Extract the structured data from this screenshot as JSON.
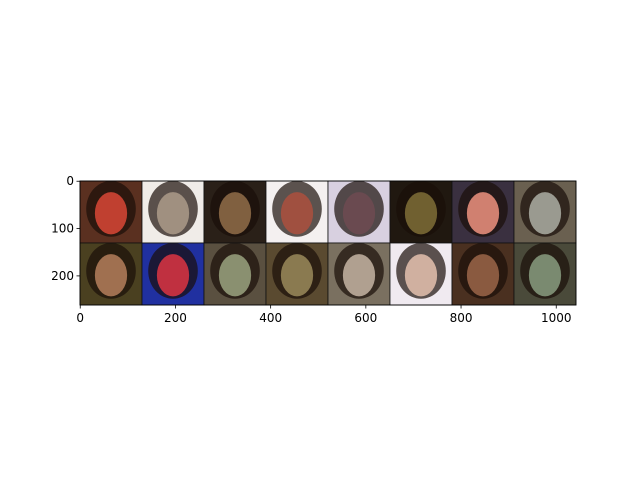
{
  "chart_data": {
    "type": "image",
    "xlim": [
      -0.5,
      1041.5
    ],
    "ylim": [
      261.5,
      -0.5
    ],
    "xticks": [
      0,
      200,
      400,
      600,
      800,
      1000
    ],
    "yticks": [
      0,
      100,
      200
    ],
    "rows": 2,
    "cols": 8
  }
}
